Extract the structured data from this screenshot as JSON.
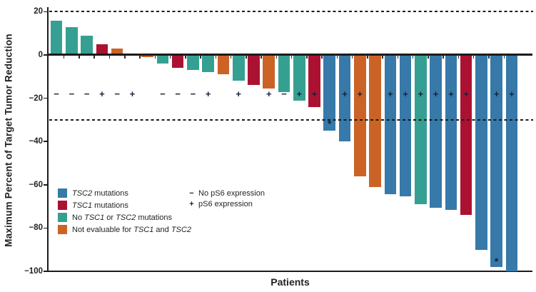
{
  "chart_data": {
    "type": "bar",
    "title": "",
    "xlabel": "Patients",
    "ylabel": "Maximum Percent of Target Tumor Reduction",
    "ylim": [
      -100,
      25
    ],
    "yticks": [
      20,
      0,
      -20,
      -40,
      -60,
      -80,
      -100
    ],
    "ytick_labels": [
      "20",
      "0",
      "−20",
      "−40",
      "−60",
      "−80",
      "−100"
    ],
    "reference_lines_y": [
      20,
      -30
    ],
    "grid": false,
    "ps6_symbol_row_y": -18,
    "colors": {
      "tsc2": "#3779a9",
      "tsc1": "#ab1232",
      "no_mut": "#35a092",
      "not_eval": "#cb6327"
    },
    "bars": [
      {
        "patient": 1,
        "value": 16,
        "group": "no_mut",
        "ps6": "−",
        "asterisk": null
      },
      {
        "patient": 2,
        "value": 13,
        "group": "no_mut",
        "ps6": "−",
        "asterisk": null
      },
      {
        "patient": 3,
        "value": 9,
        "group": "no_mut",
        "ps6": "−",
        "asterisk": null
      },
      {
        "patient": 4,
        "value": 5,
        "group": "tsc1",
        "ps6": "+",
        "asterisk": null
      },
      {
        "patient": 5,
        "value": 3,
        "group": "not_eval",
        "ps6": "−",
        "asterisk": null
      },
      {
        "patient": 6,
        "value": 0,
        "group": null,
        "ps6": "+",
        "asterisk": null
      },
      {
        "patient": 7,
        "value": -1,
        "group": "not_eval",
        "ps6": null,
        "asterisk": null
      },
      {
        "patient": 8,
        "value": -4,
        "group": "no_mut",
        "ps6": "−",
        "asterisk": null
      },
      {
        "patient": 9,
        "value": -6,
        "group": "tsc1",
        "ps6": "−",
        "asterisk": null
      },
      {
        "patient": 10,
        "value": -7,
        "group": "no_mut",
        "ps6": "−",
        "asterisk": null
      },
      {
        "patient": 11,
        "value": -8,
        "group": "no_mut",
        "ps6": "+",
        "asterisk": null
      },
      {
        "patient": 12,
        "value": -9,
        "group": "not_eval",
        "ps6": null,
        "asterisk": null
      },
      {
        "patient": 13,
        "value": -12,
        "group": "no_mut",
        "ps6": "+",
        "asterisk": null
      },
      {
        "patient": 14,
        "value": -14,
        "group": "tsc1",
        "ps6": null,
        "asterisk": null
      },
      {
        "patient": 15,
        "value": -15.5,
        "group": "not_eval",
        "ps6": "+",
        "asterisk": null
      },
      {
        "patient": 16,
        "value": -17,
        "group": "no_mut",
        "ps6": "−",
        "asterisk": null
      },
      {
        "patient": 17,
        "value": -21,
        "group": "no_mut",
        "ps6": "+",
        "asterisk": null
      },
      {
        "patient": 18,
        "value": -24,
        "group": "tsc1",
        "ps6": "+",
        "asterisk": null
      },
      {
        "patient": 19,
        "value": -35,
        "group": "tsc2",
        "ps6": null,
        "asterisk": -31.5
      },
      {
        "patient": 20,
        "value": -40,
        "group": "tsc2",
        "ps6": "+",
        "asterisk": null
      },
      {
        "patient": 21,
        "value": -56,
        "group": "not_eval",
        "ps6": "+",
        "asterisk": null
      },
      {
        "patient": 22,
        "value": -61,
        "group": "not_eval",
        "ps6": null,
        "asterisk": null
      },
      {
        "patient": 23,
        "value": -64.5,
        "group": "tsc2",
        "ps6": "+",
        "asterisk": null
      },
      {
        "patient": 24,
        "value": -65.5,
        "group": "tsc2",
        "ps6": "+",
        "asterisk": null
      },
      {
        "patient": 25,
        "value": -69,
        "group": "no_mut",
        "ps6": "+",
        "asterisk": null
      },
      {
        "patient": 26,
        "value": -70.5,
        "group": "tsc2",
        "ps6": "+",
        "asterisk": null
      },
      {
        "patient": 27,
        "value": -71.5,
        "group": "tsc2",
        "ps6": "+",
        "asterisk": null
      },
      {
        "patient": 28,
        "value": -74,
        "group": "tsc1",
        "ps6": "+",
        "asterisk": null
      },
      {
        "patient": 29,
        "value": -90,
        "group": "tsc2",
        "ps6": null,
        "asterisk": null
      },
      {
        "patient": 30,
        "value": -98,
        "group": "tsc2",
        "ps6": "+",
        "asterisk": -95
      },
      {
        "patient": 31,
        "value": -100,
        "group": "tsc2",
        "ps6": "+",
        "asterisk": null
      }
    ],
    "legend": {
      "items": [
        {
          "group": "tsc2",
          "segments": [
            {
              "t": "TSC2",
              "i": true
            },
            {
              "t": " mutations"
            }
          ]
        },
        {
          "group": "tsc1",
          "segments": [
            {
              "t": "TSC1",
              "i": true
            },
            {
              "t": " mutations"
            }
          ]
        },
        {
          "group": "no_mut",
          "segments": [
            {
              "t": "No "
            },
            {
              "t": "TSC1",
              "i": true
            },
            {
              "t": " or "
            },
            {
              "t": "TSC2",
              "i": true
            },
            {
              "t": " mutations"
            }
          ]
        },
        {
          "group": "not_eval",
          "segments": [
            {
              "t": "Not evaluable for "
            },
            {
              "t": "TSC1",
              "i": true
            },
            {
              "t": " and "
            },
            {
              "t": "TSC2",
              "i": true
            }
          ]
        }
      ],
      "ps6": [
        {
          "symbol": "−",
          "label": "No pS6 expression"
        },
        {
          "symbol": "+",
          "label": "pS6 expression"
        }
      ]
    }
  }
}
